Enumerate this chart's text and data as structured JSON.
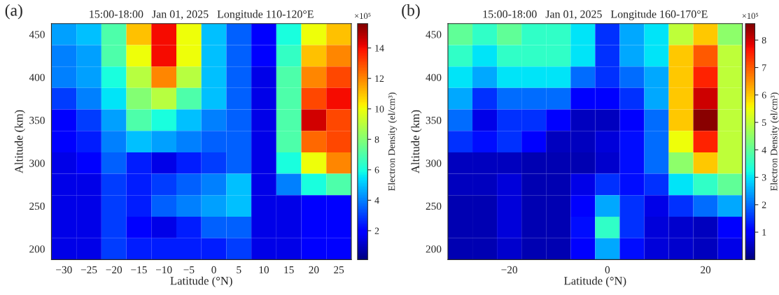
{
  "chart_data": [
    {
      "type": "heatmap",
      "title": "15:00-18:00   Jan 01, 2025   Longitude 110-120°E",
      "xlabel": "Latitude (°N)",
      "ylabel": "Altitude (km)",
      "clabel": "Electron Density (el/cm³)",
      "annotations": [
        "(a)",
        "×10⁵"
      ],
      "categories": [
        "−30",
        "−25",
        "−20",
        "−15",
        "−10",
        "−5",
        "0",
        "5",
        "10",
        "15",
        "20",
        "25"
      ],
      "y_categories": [
        "450",
        null,
        "400",
        null,
        "350",
        null,
        "300",
        null,
        "250",
        null,
        "200"
      ],
      "cells": [
        [
          4.5,
          5,
          7,
          11,
          14,
          10,
          5,
          3.5,
          2,
          6,
          10,
          11
        ],
        [
          4,
          4.5,
          7,
          10,
          14,
          10,
          5,
          3.5,
          2,
          6.5,
          11,
          12
        ],
        [
          4,
          4.5,
          6,
          9,
          12,
          9,
          5,
          3.5,
          1.5,
          7,
          12,
          13
        ],
        [
          3,
          4,
          5.5,
          8,
          9,
          7,
          5,
          3.5,
          1.5,
          7,
          13,
          14
        ],
        [
          2,
          3,
          4.5,
          7,
          6,
          5,
          4,
          3.5,
          1.5,
          7,
          14.5,
          13
        ],
        [
          2,
          2.5,
          4,
          5,
          4.5,
          4,
          3.5,
          3.5,
          1.5,
          7,
          12.5,
          13
        ],
        [
          1.5,
          2,
          3.5,
          2.5,
          1.5,
          2.5,
          3,
          3.5,
          1.5,
          6,
          10,
          12
        ],
        [
          1.5,
          1.5,
          3,
          2.5,
          3,
          3.5,
          4,
          5,
          1.5,
          4,
          6,
          7
        ],
        [
          1.5,
          1.5,
          3,
          2.5,
          3.5,
          4,
          4.5,
          5,
          1.5,
          1.5,
          2,
          2
        ],
        [
          1.5,
          1.5,
          3,
          2,
          1.5,
          2.5,
          3.5,
          3.5,
          1.5,
          1.5,
          2,
          2
        ],
        [
          1.5,
          1.5,
          3,
          2.5,
          2.5,
          2.5,
          2.5,
          3,
          1.5,
          1.5,
          2,
          2
        ]
      ],
      "clim": [
        0.1,
        15.6
      ],
      "cticks": [
        2,
        4,
        6,
        8,
        10,
        12,
        14
      ]
    },
    {
      "type": "heatmap",
      "title": "15:00-18:00   Jan 01, 2025   Longitude 160-170°E",
      "xlabel": "Latitude (°N)",
      "ylabel": "Altitude (km)",
      "clabel": "Electron Density (el/cm³)",
      "annotations": [
        "(b)",
        "×10⁵"
      ],
      "categories": [
        null,
        null,
        "−20",
        null,
        null,
        null,
        "0",
        null,
        null,
        null,
        "20",
        null
      ],
      "y_categories": [
        "450",
        null,
        "400",
        null,
        "350",
        null,
        "300",
        null,
        "250",
        null,
        "200"
      ],
      "cells": [
        [
          4,
          3.5,
          4,
          3.5,
          3.5,
          3,
          1.5,
          2.5,
          3,
          5,
          6,
          4.5
        ],
        [
          3.5,
          3,
          3.5,
          3.5,
          3.5,
          3,
          1.5,
          2.5,
          3,
          6,
          7,
          5
        ],
        [
          3,
          2.5,
          3,
          3,
          3,
          2,
          1.5,
          2,
          2.5,
          6,
          7.5,
          5
        ],
        [
          2.5,
          1.5,
          2,
          2,
          2,
          1,
          1,
          1.5,
          2.5,
          6,
          8,
          5
        ],
        [
          2,
          0.8,
          1.5,
          1.5,
          1,
          0.5,
          0.5,
          1,
          2,
          6,
          8.5,
          5
        ],
        [
          1.5,
          1.2,
          1.5,
          1,
          0.5,
          0.5,
          0.7,
          1.2,
          2,
          5.5,
          7.5,
          5
        ],
        [
          0.5,
          0.5,
          0.5,
          0.4,
          0.4,
          0.4,
          0.6,
          1.2,
          2,
          4.5,
          6,
          5
        ],
        [
          0.5,
          0.5,
          0.7,
          0.4,
          0.4,
          0.8,
          1.5,
          1.2,
          1.5,
          3,
          3.5,
          4
        ],
        [
          0.4,
          0.4,
          0.7,
          0.4,
          0.4,
          1,
          2.5,
          1.5,
          0.8,
          1.5,
          2,
          2.5
        ],
        [
          0.4,
          0.4,
          0.7,
          0.4,
          0.4,
          1.2,
          3.5,
          1.5,
          0.7,
          0.6,
          0.5,
          1
        ],
        [
          0.4,
          0.4,
          0.6,
          0.4,
          0.4,
          1,
          2.5,
          1.2,
          0.7,
          0.6,
          0.5,
          0.8
        ]
      ],
      "clim": [
        0,
        8.6
      ],
      "cticks": [
        1,
        2,
        3,
        4,
        5,
        6,
        7,
        8
      ]
    }
  ]
}
